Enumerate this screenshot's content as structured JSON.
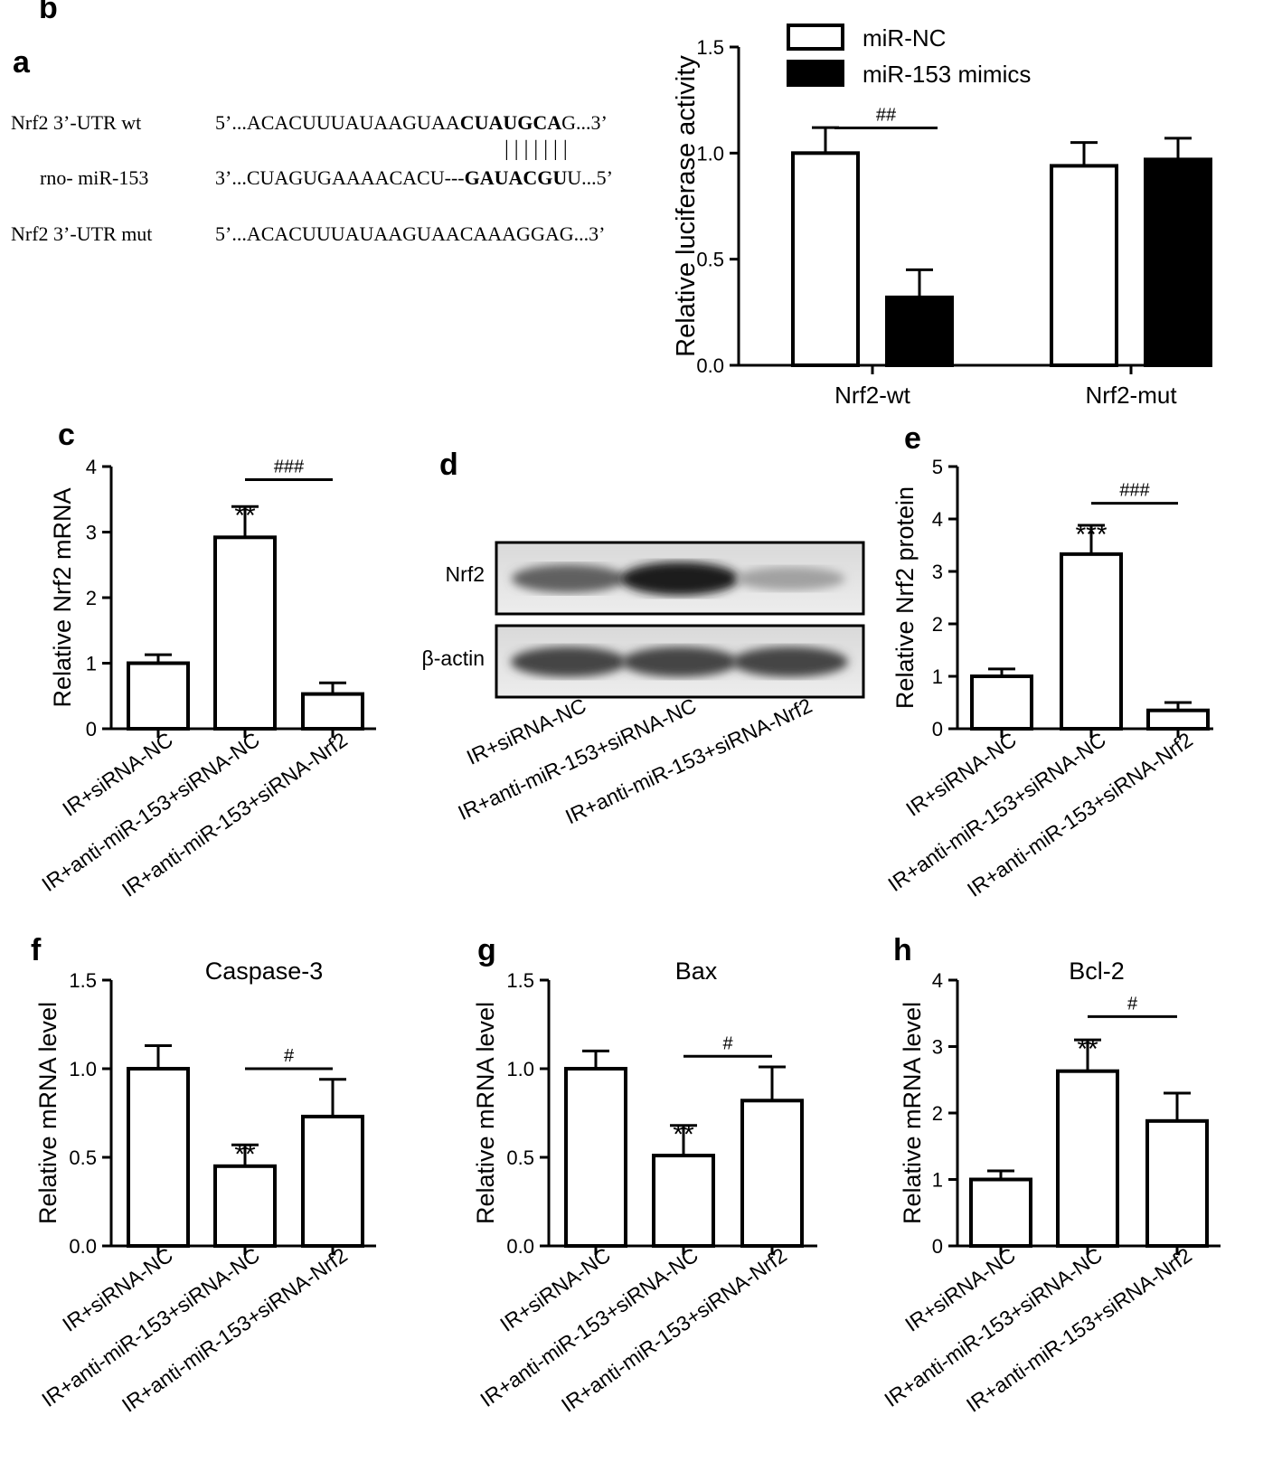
{
  "panel_a": {
    "label": "a",
    "rows": [
      {
        "name": "Nrf2 3’-UTR wt",
        "parts": [
          {
            "t": "5’...ACACUUUAUAAGUAA",
            "b": false
          },
          {
            "t": "CUAUGCA",
            "b": true
          },
          {
            "t": "G...3’",
            "b": false
          }
        ]
      },
      {
        "name": "rno- miR-153",
        "parts": [
          {
            "t": "3’...CUAGUGAAAACACU---",
            "b": false
          },
          {
            "t": "GAUACGU",
            "b": true
          },
          {
            "t": "U...5’",
            "b": false
          }
        ]
      },
      {
        "name": "Nrf2 3’-UTR mut",
        "parts": [
          {
            "t": "5’...ACACUUUAUAAGUAACAAAGGAG...3’",
            "b": false
          }
        ]
      }
    ],
    "pairing": "| | | | | | |"
  },
  "panel_d": {
    "label": "d",
    "bands": [
      "Nrf2",
      "β-actin"
    ],
    "intensity": {
      "Nrf2": [
        0.62,
        0.95,
        0.32
      ],
      "β-actin": [
        0.75,
        0.75,
        0.75
      ]
    },
    "lanes": [
      "IR+siRNA-NC",
      "IR+anti-miR-153+siRNA-NC",
      "IR+anti-miR-153+siRNA-Nrf2"
    ]
  },
  "chart_data": [
    {
      "id": "b",
      "label": "b",
      "type": "bar",
      "title": "",
      "ylabel": "Relative luciferase activity",
      "ylim": [
        0,
        1.5
      ],
      "yticks": [
        "0.0",
        "0.5",
        "1.0",
        "1.5"
      ],
      "categories": [
        "Nrf2-wt",
        "Nrf2-mut"
      ],
      "series": [
        {
          "name": "miR-NC",
          "values": [
            1.0,
            0.94
          ],
          "errors": [
            0.12,
            0.11
          ],
          "fill": "#ffffff"
        },
        {
          "name": "miR-153 mimics",
          "values": [
            0.32,
            0.97
          ],
          "errors": [
            0.13,
            0.1
          ],
          "fill": "#000000"
        }
      ],
      "legend": "top-left",
      "annotations": [
        {
          "text": "##",
          "between": [
            [
              0,
              0
            ],
            [
              0,
              1
            ]
          ],
          "y": 1.17
        }
      ]
    },
    {
      "id": "c",
      "label": "c",
      "type": "bar",
      "title": "",
      "ylabel": "Relative Nrf2 mRNA",
      "ylim": [
        0,
        4
      ],
      "yticks": [
        "0",
        "1",
        "2",
        "3",
        "4"
      ],
      "categories": [
        "IR+siRNA-NC",
        "IR+anti-miR-153+siRNA-NC",
        "IR+anti-miR-153+siRNA-Nrf2"
      ],
      "values": [
        1.0,
        2.92,
        0.53
      ],
      "errors": [
        0.13,
        0.47,
        0.17
      ],
      "stars": [
        {
          "index": 1,
          "text": "**"
        }
      ],
      "annotations": [
        {
          "text": "###",
          "between": [
            1,
            2
          ],
          "y": 3.8
        }
      ]
    },
    {
      "id": "e",
      "label": "e",
      "type": "bar",
      "title": "",
      "ylabel": "Relative Nrf2 protein",
      "ylim": [
        0,
        5
      ],
      "yticks": [
        "0",
        "1",
        "2",
        "3",
        "4",
        "5"
      ],
      "categories": [
        "IR+siRNA-NC",
        "IR+anti-miR-153+siRNA-NC",
        "IR+anti-miR-153+siRNA-Nrf2"
      ],
      "values": [
        1.0,
        3.33,
        0.35
      ],
      "errors": [
        0.14,
        0.55,
        0.15
      ],
      "stars": [
        {
          "index": 1,
          "text": "***"
        }
      ],
      "annotations": [
        {
          "text": "###",
          "between": [
            1,
            2
          ],
          "y": 4.3
        }
      ]
    },
    {
      "id": "f",
      "label": "f",
      "type": "bar",
      "title": "Caspase-3",
      "ylabel": "Relative mRNA level",
      "ylim": [
        0,
        1.5
      ],
      "yticks": [
        "0.0",
        "0.5",
        "1.0",
        "1.5"
      ],
      "categories": [
        "IR+siRNA-NC",
        "IR+anti-miR-153+siRNA-NC",
        "IR+anti-miR-153+siRNA-Nrf2"
      ],
      "values": [
        1.0,
        0.45,
        0.73
      ],
      "errors": [
        0.13,
        0.12,
        0.21
      ],
      "stars": [
        {
          "index": 1,
          "text": "**"
        }
      ],
      "annotations": [
        {
          "text": "#",
          "between": [
            1,
            2
          ],
          "y": 1.0
        }
      ]
    },
    {
      "id": "g",
      "label": "g",
      "type": "bar",
      "title": "Bax",
      "ylabel": "Relative mRNA level",
      "ylim": [
        0,
        1.5
      ],
      "yticks": [
        "0.0",
        "0.5",
        "1.0",
        "1.5"
      ],
      "categories": [
        "IR+siRNA-NC",
        "IR+anti-miR-153+siRNA-NC",
        "IR+anti-miR-153+siRNA-Nrf2"
      ],
      "values": [
        1.0,
        0.51,
        0.82
      ],
      "errors": [
        0.1,
        0.17,
        0.19
      ],
      "stars": [
        {
          "index": 1,
          "text": "**"
        }
      ],
      "annotations": [
        {
          "text": "#",
          "between": [
            1,
            2
          ],
          "y": 1.07
        }
      ]
    },
    {
      "id": "h",
      "label": "h",
      "type": "bar",
      "title": "Bcl-2",
      "ylabel": "Relative mRNA level",
      "ylim": [
        0,
        4
      ],
      "yticks": [
        "0",
        "1",
        "2",
        "3",
        "4"
      ],
      "categories": [
        "IR+siRNA-NC",
        "IR+anti-miR-153+siRNA-NC",
        "IR+anti-miR-153+siRNA-Nrf2"
      ],
      "values": [
        1.0,
        2.63,
        1.88
      ],
      "errors": [
        0.13,
        0.47,
        0.42
      ],
      "stars": [
        {
          "index": 1,
          "text": "**"
        }
      ],
      "annotations": [
        {
          "text": "#",
          "between": [
            1,
            2
          ],
          "y": 3.45
        }
      ]
    }
  ]
}
